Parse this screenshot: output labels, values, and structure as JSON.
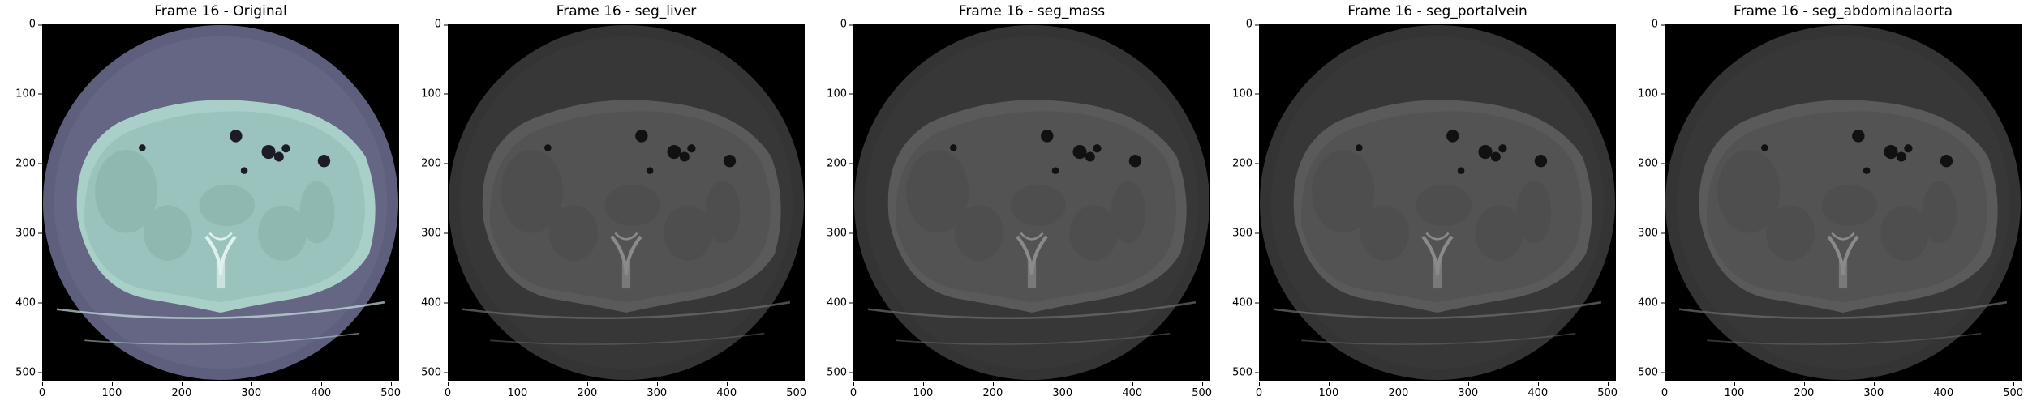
{
  "figure": {
    "panels": [
      {
        "title": "Frame 16 - Original",
        "colormap": "bone"
      },
      {
        "title": "Frame 16 - seg_liver",
        "colormap": "gray-overlay"
      },
      {
        "title": "Frame 16 - seg_mass",
        "colormap": "gray-overlay"
      },
      {
        "title": "Frame 16 - seg_portalvein",
        "colormap": "gray-overlay"
      },
      {
        "title": "Frame 16 - seg_abdominalaorta",
        "colormap": "gray-overlay"
      }
    ],
    "y_ticks": [
      "0",
      "100",
      "200",
      "300",
      "400",
      "500"
    ],
    "x_ticks": [
      "0",
      "100",
      "200",
      "300",
      "400",
      "500"
    ],
    "image_size": 512
  }
}
